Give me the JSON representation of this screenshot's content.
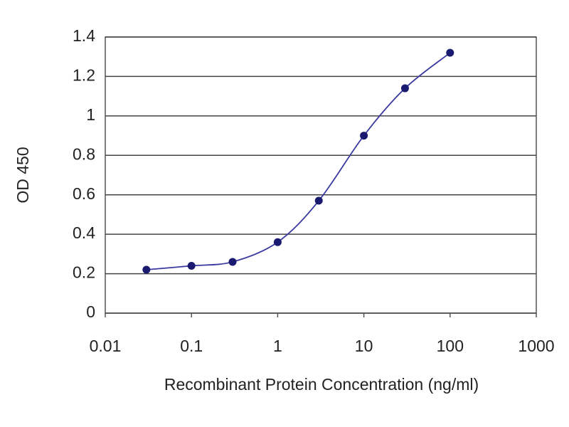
{
  "chart_data": {
    "type": "line",
    "xlabel": "Recombinant Protein Concentration (ng/ml)",
    "ylabel": "OD 450",
    "x": [
      0.03,
      0.1,
      0.3,
      1,
      3,
      10,
      30,
      100
    ],
    "values": [
      0.22,
      0.24,
      0.26,
      0.36,
      0.57,
      0.9,
      1.14,
      1.32
    ],
    "color": "#1a1a70",
    "line_color": "#3a3aa0",
    "xscale": "log",
    "xlim": [
      0.01,
      1000
    ],
    "xticks": [
      0.01,
      0.1,
      1,
      10,
      100,
      1000
    ],
    "ylim": [
      0,
      1.4
    ],
    "yticks": [
      0,
      0.2,
      0.4,
      0.6,
      0.8,
      1,
      1.2,
      1.4
    ],
    "grid": true
  }
}
